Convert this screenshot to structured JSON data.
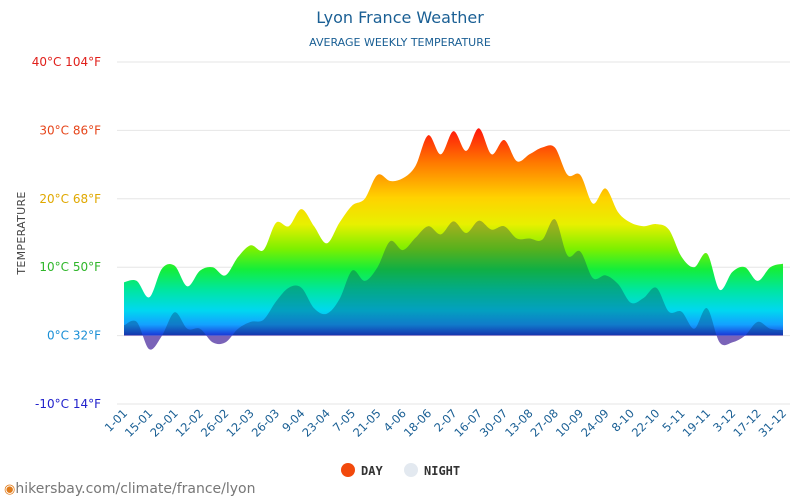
{
  "chart_data": {
    "type": "area",
    "title": "Lyon France Weather",
    "subtitle": "AVERAGE WEEKLY TEMPERATURE",
    "ylabel": "TEMPERATURE",
    "ylim": [
      -10,
      40
    ],
    "yticks": [
      {
        "value": 40,
        "label": "40°C 104°F",
        "color": "#e0201b"
      },
      {
        "value": 30,
        "label": "30°C 86°F",
        "color": "#e6461b"
      },
      {
        "value": 20,
        "label": "20°C 68°F",
        "color": "#e0a800"
      },
      {
        "value": 10,
        "label": "10°C 50°F",
        "color": "#2fb62a"
      },
      {
        "value": 0,
        "label": "0°C 32°F",
        "color": "#1a8fd6"
      },
      {
        "value": -10,
        "label": "-10°C 14°F",
        "color": "#2222cc"
      }
    ],
    "categories": [
      "1-01",
      "15-01",
      "29-01",
      "12-02",
      "26-02",
      "12-03",
      "26-03",
      "9-04",
      "23-04",
      "7-05",
      "21-05",
      "4-06",
      "18-06",
      "2-07",
      "16-07",
      "30-07",
      "13-08",
      "27-08",
      "10-09",
      "24-09",
      "8-10",
      "22-10",
      "5-11",
      "19-11",
      "3-12",
      "17-12",
      "31-12"
    ],
    "x": [
      0,
      0.5,
      1,
      1.5,
      2,
      2.5,
      3,
      3.5,
      4,
      4.5,
      5,
      5.5,
      6,
      6.5,
      7,
      7.5,
      8,
      8.5,
      9,
      9.5,
      10,
      10.5,
      11,
      11.5,
      12,
      12.5,
      13,
      13.5,
      14,
      14.5,
      15,
      15.5,
      16,
      16.5,
      17,
      17.5,
      18,
      18.5,
      19,
      19.5,
      20,
      20.5,
      21,
      21.5,
      22,
      22.5,
      23,
      23.5,
      24,
      24.5,
      25,
      25.5,
      26
    ],
    "series": [
      {
        "name": "DAY",
        "color": "#f2490c",
        "values": [
          7.8,
          8,
          5.6,
          9.8,
          10.2,
          7.2,
          9.5,
          10,
          8.8,
          11.5,
          13.2,
          12.5,
          16.5,
          16,
          18.5,
          16,
          13.5,
          16.5,
          19,
          20,
          23.5,
          22.6,
          23,
          24.8,
          29.3,
          26.5,
          29.9,
          27,
          30.3,
          26.5,
          28.6,
          25.5,
          26.5,
          27.5,
          27.5,
          23.5,
          23.5,
          19.3,
          21.5,
          18,
          16.5,
          16,
          16.3,
          15.5,
          11.5,
          10,
          12,
          6.7,
          9.3,
          10,
          8,
          10,
          10.5
        ]
      },
      {
        "name": "NIGHT",
        "color": "#e3e9f0",
        "values": [
          1.5,
          2,
          -2,
          0,
          3.4,
          1,
          1,
          -1,
          -1,
          1,
          2,
          2.3,
          5,
          7,
          7,
          4,
          3.2,
          5.3,
          9.5,
          8,
          10,
          13.8,
          12.5,
          14.3,
          16,
          14.8,
          16.7,
          15,
          16.8,
          15.5,
          16,
          14.2,
          14.2,
          14,
          17,
          11.7,
          12.3,
          8.4,
          8.8,
          7.5,
          4.8,
          5.5,
          7,
          3.5,
          3.5,
          1,
          4,
          -1,
          -1,
          0,
          2,
          1,
          0.8
        ]
      }
    ],
    "legend": [
      {
        "label": "DAY",
        "color": "#f2490c"
      },
      {
        "label": "NIGHT",
        "color": "#e3e9f0"
      }
    ]
  },
  "source_text": "hikersbay.com/climate/france/lyon"
}
